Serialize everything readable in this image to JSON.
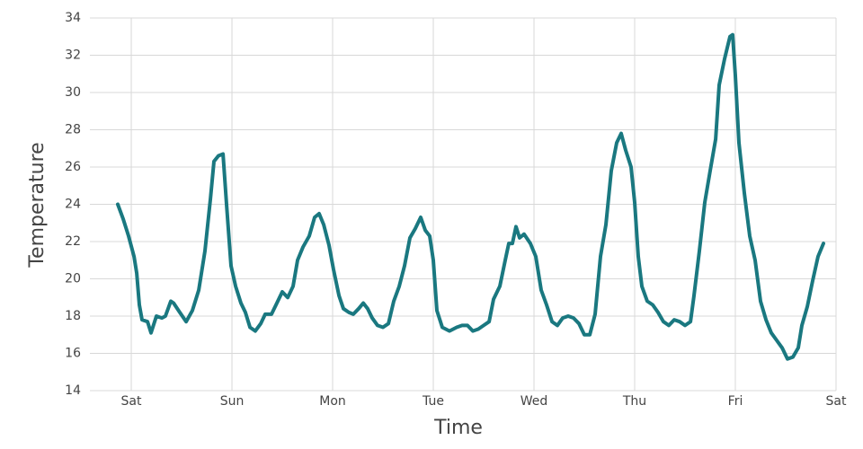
{
  "chart_data": {
    "type": "line",
    "xlabel": "Time",
    "ylabel": "Temperature",
    "color": "#1a7880",
    "grid": true,
    "xlim": [
      -0.411,
      7
    ],
    "ylim": [
      14,
      34
    ],
    "xticks": [
      {
        "value": 0,
        "label": "Sat"
      },
      {
        "value": 1,
        "label": "Sun"
      },
      {
        "value": 2,
        "label": "Mon"
      },
      {
        "value": 3,
        "label": "Tue"
      },
      {
        "value": 4,
        "label": "Wed"
      },
      {
        "value": 5,
        "label": "Thu"
      },
      {
        "value": 6,
        "label": "Fri"
      },
      {
        "value": 7,
        "label": "Sat"
      }
    ],
    "yticks": [
      14,
      16,
      18,
      20,
      22,
      24,
      26,
      28,
      30,
      32,
      34
    ],
    "x": [
      -0.134,
      -0.08,
      -0.027,
      0.027,
      0.054,
      0.08,
      0.107,
      0.161,
      0.196,
      0.25,
      0.304,
      0.339,
      0.393,
      0.42,
      0.482,
      0.545,
      0.607,
      0.67,
      0.732,
      0.786,
      0.821,
      0.866,
      0.911,
      0.946,
      0.991,
      1.036,
      1.089,
      1.134,
      1.179,
      1.232,
      1.286,
      1.33,
      1.393,
      1.446,
      1.5,
      1.554,
      1.607,
      1.652,
      1.705,
      1.768,
      1.821,
      1.866,
      1.911,
      1.964,
      2.009,
      2.063,
      2.107,
      2.161,
      2.205,
      2.259,
      2.304,
      2.348,
      2.393,
      2.446,
      2.5,
      2.554,
      2.607,
      2.661,
      2.714,
      2.768,
      2.821,
      2.875,
      2.92,
      2.964,
      3.0,
      3.036,
      3.089,
      3.161,
      3.232,
      3.286,
      3.339,
      3.393,
      3.446,
      3.5,
      3.554,
      3.598,
      3.661,
      3.714,
      3.75,
      3.786,
      3.821,
      3.857,
      3.902,
      3.964,
      4.018,
      4.071,
      4.125,
      4.179,
      4.232,
      4.286,
      4.339,
      4.393,
      4.446,
      4.5,
      4.554,
      4.607,
      4.661,
      4.714,
      4.768,
      4.821,
      4.866,
      4.911,
      4.964,
      5.0,
      5.036,
      5.071,
      5.125,
      5.179,
      5.232,
      5.286,
      5.339,
      5.393,
      5.446,
      5.5,
      5.554,
      5.589,
      5.643,
      5.696,
      5.75,
      5.804,
      5.839,
      5.893,
      5.946,
      5.973,
      6.0,
      6.036,
      6.089,
      6.143,
      6.196,
      6.25,
      6.304,
      6.357,
      6.411,
      6.464,
      6.518,
      6.571,
      6.625,
      6.661,
      6.714,
      6.768,
      6.821,
      6.875
    ],
    "values": [
      24.0,
      23.2,
      22.3,
      21.2,
      20.3,
      18.6,
      17.8,
      17.7,
      17.1,
      18.0,
      17.9,
      18.0,
      18.8,
      18.7,
      18.2,
      17.7,
      18.3,
      19.4,
      21.5,
      24.3,
      26.3,
      26.6,
      26.7,
      24.0,
      20.7,
      19.6,
      18.7,
      18.2,
      17.4,
      17.2,
      17.6,
      18.1,
      18.1,
      18.7,
      19.3,
      19.0,
      19.6,
      21.0,
      21.7,
      22.3,
      23.3,
      23.5,
      22.9,
      21.8,
      20.5,
      19.1,
      18.4,
      18.2,
      18.1,
      18.4,
      18.7,
      18.4,
      17.9,
      17.5,
      17.4,
      17.6,
      18.8,
      19.6,
      20.7,
      22.2,
      22.7,
      23.3,
      22.6,
      22.3,
      21.0,
      18.3,
      17.4,
      17.2,
      17.4,
      17.5,
      17.5,
      17.2,
      17.3,
      17.5,
      17.7,
      18.9,
      19.6,
      21.0,
      21.9,
      21.9,
      22.8,
      22.2,
      22.4,
      21.9,
      21.2,
      19.4,
      18.6,
      17.7,
      17.5,
      17.9,
      18.0,
      17.9,
      17.6,
      17.0,
      17.0,
      18.1,
      21.2,
      22.9,
      25.8,
      27.3,
      27.8,
      26.9,
      26.0,
      24.1,
      21.2,
      19.6,
      18.8,
      18.6,
      18.2,
      17.7,
      17.5,
      17.8,
      17.7,
      17.5,
      17.7,
      19.1,
      21.5,
      24.1,
      25.8,
      27.5,
      30.4,
      31.8,
      33.0,
      33.1,
      30.9,
      27.3,
      24.6,
      22.3,
      21.0,
      18.8,
      17.8,
      17.1,
      16.7,
      16.3,
      15.7,
      15.8,
      16.3,
      17.5,
      18.5,
      19.9,
      21.2,
      21.9
    ]
  }
}
